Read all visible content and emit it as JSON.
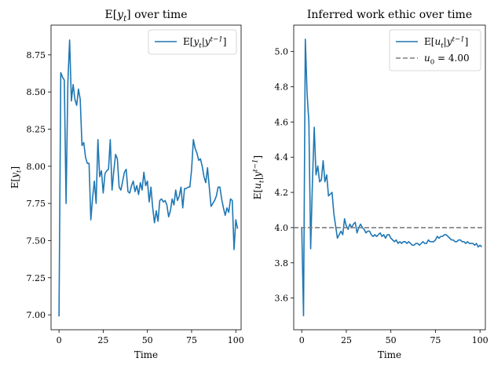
{
  "chart_data": [
    {
      "type": "line",
      "title": "E[y_t] over time",
      "xlabel": "Time",
      "ylabel": "E[y_t]",
      "xlim": [
        -4.5,
        103
      ],
      "ylim": [
        6.9,
        8.95
      ],
      "xticks": [
        0,
        25,
        50,
        75,
        100
      ],
      "yticks": [
        7.0,
        7.25,
        7.5,
        7.75,
        8.0,
        8.25,
        8.5,
        8.75
      ],
      "ytick_labels": [
        "7.00",
        "7.25",
        "7.50",
        "7.75",
        "8.00",
        "8.25",
        "8.50",
        "8.75"
      ],
      "grid": false,
      "legend_position": "top-right",
      "series": [
        {
          "name": "E[y_t | y^{t-1}]",
          "color": "#1f77b4",
          "style": "solid",
          "x_start": 0,
          "values": [
            6.99,
            8.63,
            8.6,
            8.58,
            7.75,
            8.56,
            8.85,
            8.44,
            8.55,
            8.45,
            8.41,
            8.52,
            8.45,
            8.14,
            8.16,
            8.06,
            8.02,
            8.02,
            7.64,
            7.79,
            7.9,
            7.75,
            8.18,
            7.93,
            7.97,
            7.82,
            7.95,
            7.97,
            7.98,
            8.18,
            7.84,
            7.97,
            8.08,
            8.05,
            7.86,
            7.84,
            7.9,
            7.96,
            7.98,
            7.83,
            7.82,
            7.87,
            7.9,
            7.83,
            7.87,
            7.81,
            7.89,
            7.84,
            7.96,
            7.87,
            7.9,
            7.76,
            7.86,
            7.72,
            7.62,
            7.7,
            7.63,
            7.77,
            7.78,
            7.76,
            7.77,
            7.74,
            7.66,
            7.7,
            7.78,
            7.74,
            7.84,
            7.77,
            7.8,
            7.86,
            7.72,
            7.85,
            7.85,
            7.86,
            7.86,
            7.98,
            8.18,
            8.12,
            8.09,
            8.04,
            8.05,
            8.0,
            7.93,
            7.89,
            7.99,
            7.86,
            7.73,
            7.75,
            7.77,
            7.8,
            7.86,
            7.86,
            7.78,
            7.72,
            7.67,
            7.72,
            7.69,
            7.78,
            7.77,
            7.44,
            7.64,
            7.58
          ]
        }
      ]
    },
    {
      "type": "line",
      "title": "Inferred work ethic over time",
      "xlabel": "Time",
      "ylabel": "E[u_t | y^{t-1}]",
      "xlim": [
        -4.5,
        103
      ],
      "ylim": [
        3.42,
        5.15
      ],
      "xticks": [
        0,
        25,
        50,
        75,
        100
      ],
      "yticks": [
        3.6,
        3.8,
        4.0,
        4.2,
        4.4,
        4.6,
        4.8,
        5.0
      ],
      "ytick_labels": [
        "3.6",
        "3.8",
        "4.0",
        "4.2",
        "4.4",
        "4.6",
        "4.8",
        "5.0"
      ],
      "grid": false,
      "legend_position": "top-right",
      "series": [
        {
          "name": "E[u_t | y^{t-1}]",
          "color": "#1f77b4",
          "style": "solid",
          "x_start": 0,
          "values": [
            4.0,
            3.5,
            5.07,
            4.76,
            4.6,
            3.88,
            4.26,
            4.57,
            4.3,
            4.35,
            4.26,
            4.27,
            4.38,
            4.26,
            4.3,
            4.18,
            4.19,
            4.2,
            4.08,
            4.01,
            3.94,
            3.96,
            3.98,
            3.96,
            4.05,
            4.01,
            3.99,
            4.02,
            4.0,
            4.02,
            4.03,
            3.97,
            4.0,
            4.02,
            4.0,
            3.99,
            3.97,
            3.98,
            3.98,
            3.96,
            3.95,
            3.96,
            3.95,
            3.96,
            3.97,
            3.95,
            3.96,
            3.94,
            3.96,
            3.96,
            3.94,
            3.93,
            3.92,
            3.93,
            3.91,
            3.92,
            3.91,
            3.92,
            3.92,
            3.91,
            3.92,
            3.91,
            3.9,
            3.9,
            3.91,
            3.91,
            3.9,
            3.91,
            3.92,
            3.91,
            3.91,
            3.93,
            3.92,
            3.92,
            3.92,
            3.93,
            3.95,
            3.94,
            3.95,
            3.95,
            3.96,
            3.96,
            3.95,
            3.94,
            3.93,
            3.93,
            3.92,
            3.92,
            3.93,
            3.93,
            3.92,
            3.92,
            3.91,
            3.92,
            3.91,
            3.91,
            3.91,
            3.9,
            3.91,
            3.89,
            3.9,
            3.89
          ]
        },
        {
          "name": "u_0 = 4.00",
          "color": "#7f7f7f",
          "style": "dashed",
          "hline": 4.0
        }
      ]
    }
  ]
}
